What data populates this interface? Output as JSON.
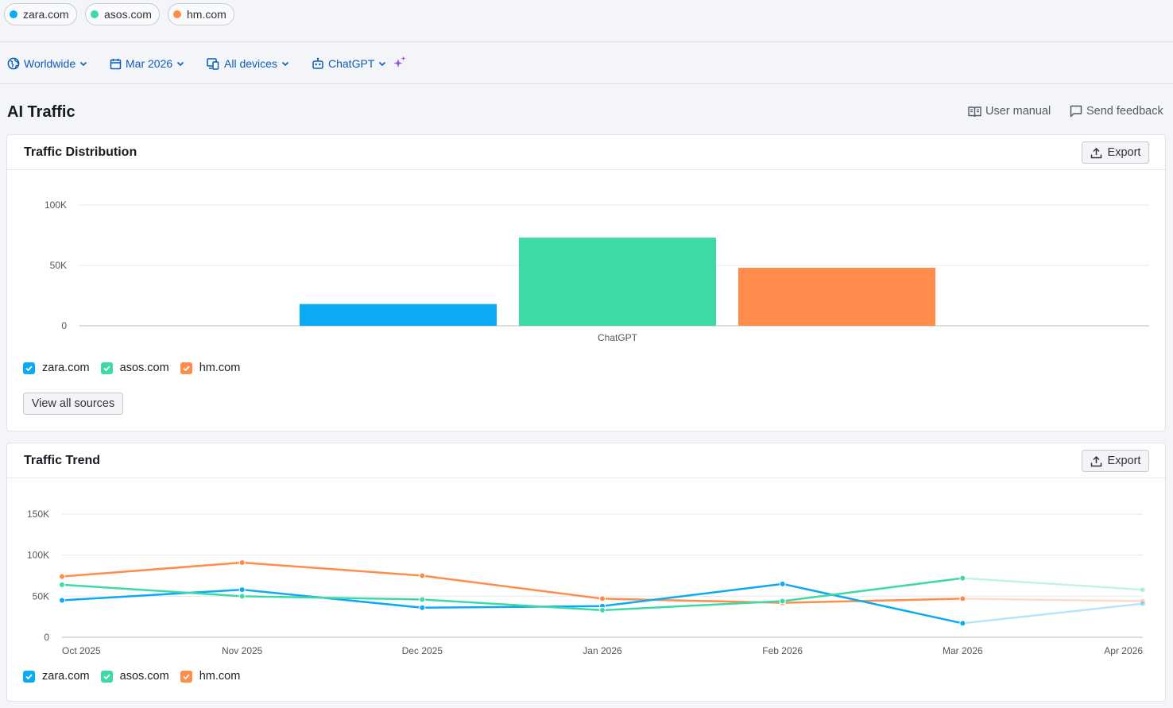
{
  "domains": [
    {
      "name": "zara.com",
      "color": "#0aaaf5"
    },
    {
      "name": "asos.com",
      "color": "#3edaa6"
    },
    {
      "name": "hm.com",
      "color": "#ff8c4a"
    }
  ],
  "filters": {
    "region": "Worldwide",
    "date": "Mar 2026",
    "devices": "All devices",
    "source": "ChatGPT"
  },
  "page": {
    "title": "AI Traffic",
    "user_manual": "User manual",
    "send_feedback": "Send feedback"
  },
  "distribution": {
    "title": "Traffic Distribution",
    "export_label": "Export",
    "view_all_label": "View all sources"
  },
  "trend": {
    "title": "Traffic Trend",
    "export_label": "Export"
  },
  "chart_data": [
    {
      "type": "bar",
      "title": "Traffic Distribution",
      "categories": [
        "ChatGPT"
      ],
      "series": [
        {
          "name": "zara.com",
          "color": "#0aaaf5",
          "values": [
            18000
          ]
        },
        {
          "name": "asos.com",
          "color": "#3edaa6",
          "values": [
            73000
          ]
        },
        {
          "name": "hm.com",
          "color": "#ff8c4a",
          "values": [
            48000
          ]
        }
      ],
      "y_ticks": [
        "0",
        "50K",
        "100K"
      ],
      "ylim": [
        0,
        100000
      ],
      "grid": true,
      "legend": "bottom-left"
    },
    {
      "type": "line",
      "title": "Traffic Trend",
      "x": [
        "Oct 2025",
        "Nov 2025",
        "Dec 2025",
        "Jan 2026",
        "Feb 2026",
        "Mar 2026",
        "Apr 2026"
      ],
      "series": [
        {
          "name": "zara.com",
          "color": "#0aaaf5",
          "values": [
            45000,
            58000,
            36000,
            38000,
            65000,
            17000,
            41000
          ]
        },
        {
          "name": "asos.com",
          "color": "#3edaa6",
          "values": [
            64000,
            50000,
            46000,
            33000,
            44000,
            72000,
            58000
          ]
        },
        {
          "name": "hm.com",
          "color": "#ff8c4a",
          "values": [
            74000,
            91000,
            75000,
            47000,
            42000,
            47000,
            44000
          ]
        }
      ],
      "y_ticks": [
        "0",
        "50K",
        "100K",
        "150K"
      ],
      "ylim": [
        0,
        150000
      ],
      "grid": true,
      "legend": "bottom-left",
      "note": "Apr 2026 segment shown faded (partial period)"
    }
  ]
}
